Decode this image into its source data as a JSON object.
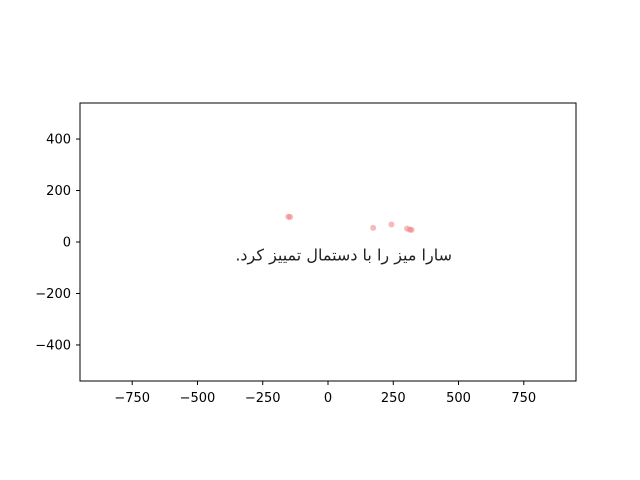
{
  "chart_data": {
    "type": "scatter",
    "title": "",
    "xlabel": "",
    "ylabel": "",
    "xlim": [
      -950,
      950
    ],
    "ylim": [
      -540,
      540
    ],
    "x_ticks": [
      -750,
      -500,
      -250,
      0,
      250,
      500,
      750
    ],
    "x_tick_labels": [
      "−750",
      "−500",
      "−250",
      "0",
      "250",
      "500",
      "750"
    ],
    "y_ticks": [
      400,
      200,
      0,
      -200,
      -400
    ],
    "y_tick_labels": [
      "400",
      "200",
      "0",
      "−200",
      "−400"
    ],
    "grid": false,
    "legend": "none",
    "point_color": "#f08080",
    "series": [
      {
        "points": [
          {
            "x": -152,
            "y": 98
          },
          {
            "x": -145,
            "y": 97
          },
          {
            "x": 173,
            "y": 55
          },
          {
            "x": 243,
            "y": 68
          },
          {
            "x": 303,
            "y": 52
          },
          {
            "x": 314,
            "y": 48
          },
          {
            "x": 320,
            "y": 47
          }
        ]
      }
    ],
    "annotations": [
      {
        "text": "سارا میز را با دستمال تمییز کرد.",
        "x": 60,
        "y": -52
      }
    ]
  }
}
